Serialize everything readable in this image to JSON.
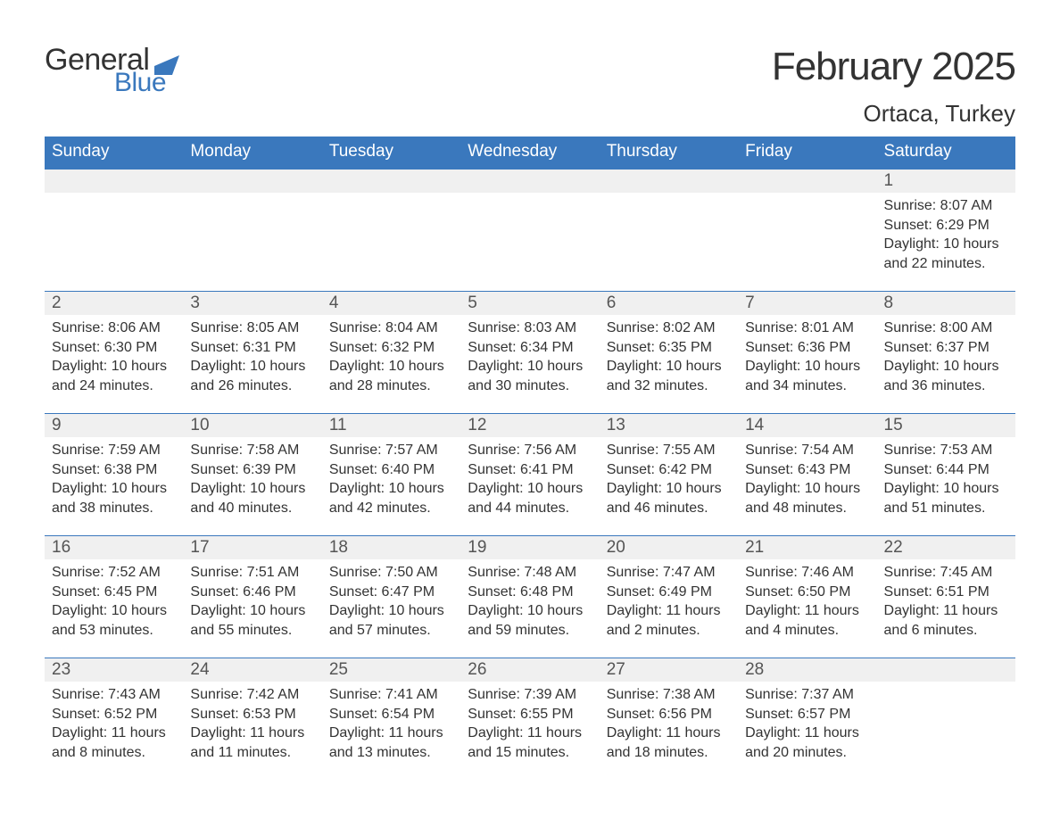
{
  "logo": {
    "text1": "General",
    "text2": "Blue",
    "icon_color": "#3a78bd"
  },
  "title": "February 2025",
  "location": "Ortaca, Turkey",
  "header_bg": "#3a78bd",
  "header_fg": "#ffffff",
  "day_strip_bg": "#f0f0f0",
  "divider_color": "#3a78bd",
  "weekdays": [
    "Sunday",
    "Monday",
    "Tuesday",
    "Wednesday",
    "Thursday",
    "Friday",
    "Saturday"
  ],
  "weeks": [
    [
      {
        "n": "",
        "sunrise": "",
        "sunset": "",
        "daylight": ""
      },
      {
        "n": "",
        "sunrise": "",
        "sunset": "",
        "daylight": ""
      },
      {
        "n": "",
        "sunrise": "",
        "sunset": "",
        "daylight": ""
      },
      {
        "n": "",
        "sunrise": "",
        "sunset": "",
        "daylight": ""
      },
      {
        "n": "",
        "sunrise": "",
        "sunset": "",
        "daylight": ""
      },
      {
        "n": "",
        "sunrise": "",
        "sunset": "",
        "daylight": ""
      },
      {
        "n": "1",
        "sunrise": "Sunrise: 8:07 AM",
        "sunset": "Sunset: 6:29 PM",
        "daylight": "Daylight: 10 hours and 22 minutes."
      }
    ],
    [
      {
        "n": "2",
        "sunrise": "Sunrise: 8:06 AM",
        "sunset": "Sunset: 6:30 PM",
        "daylight": "Daylight: 10 hours and 24 minutes."
      },
      {
        "n": "3",
        "sunrise": "Sunrise: 8:05 AM",
        "sunset": "Sunset: 6:31 PM",
        "daylight": "Daylight: 10 hours and 26 minutes."
      },
      {
        "n": "4",
        "sunrise": "Sunrise: 8:04 AM",
        "sunset": "Sunset: 6:32 PM",
        "daylight": "Daylight: 10 hours and 28 minutes."
      },
      {
        "n": "5",
        "sunrise": "Sunrise: 8:03 AM",
        "sunset": "Sunset: 6:34 PM",
        "daylight": "Daylight: 10 hours and 30 minutes."
      },
      {
        "n": "6",
        "sunrise": "Sunrise: 8:02 AM",
        "sunset": "Sunset: 6:35 PM",
        "daylight": "Daylight: 10 hours and 32 minutes."
      },
      {
        "n": "7",
        "sunrise": "Sunrise: 8:01 AM",
        "sunset": "Sunset: 6:36 PM",
        "daylight": "Daylight: 10 hours and 34 minutes."
      },
      {
        "n": "8",
        "sunrise": "Sunrise: 8:00 AM",
        "sunset": "Sunset: 6:37 PM",
        "daylight": "Daylight: 10 hours and 36 minutes."
      }
    ],
    [
      {
        "n": "9",
        "sunrise": "Sunrise: 7:59 AM",
        "sunset": "Sunset: 6:38 PM",
        "daylight": "Daylight: 10 hours and 38 minutes."
      },
      {
        "n": "10",
        "sunrise": "Sunrise: 7:58 AM",
        "sunset": "Sunset: 6:39 PM",
        "daylight": "Daylight: 10 hours and 40 minutes."
      },
      {
        "n": "11",
        "sunrise": "Sunrise: 7:57 AM",
        "sunset": "Sunset: 6:40 PM",
        "daylight": "Daylight: 10 hours and 42 minutes."
      },
      {
        "n": "12",
        "sunrise": "Sunrise: 7:56 AM",
        "sunset": "Sunset: 6:41 PM",
        "daylight": "Daylight: 10 hours and 44 minutes."
      },
      {
        "n": "13",
        "sunrise": "Sunrise: 7:55 AM",
        "sunset": "Sunset: 6:42 PM",
        "daylight": "Daylight: 10 hours and 46 minutes."
      },
      {
        "n": "14",
        "sunrise": "Sunrise: 7:54 AM",
        "sunset": "Sunset: 6:43 PM",
        "daylight": "Daylight: 10 hours and 48 minutes."
      },
      {
        "n": "15",
        "sunrise": "Sunrise: 7:53 AM",
        "sunset": "Sunset: 6:44 PM",
        "daylight": "Daylight: 10 hours and 51 minutes."
      }
    ],
    [
      {
        "n": "16",
        "sunrise": "Sunrise: 7:52 AM",
        "sunset": "Sunset: 6:45 PM",
        "daylight": "Daylight: 10 hours and 53 minutes."
      },
      {
        "n": "17",
        "sunrise": "Sunrise: 7:51 AM",
        "sunset": "Sunset: 6:46 PM",
        "daylight": "Daylight: 10 hours and 55 minutes."
      },
      {
        "n": "18",
        "sunrise": "Sunrise: 7:50 AM",
        "sunset": "Sunset: 6:47 PM",
        "daylight": "Daylight: 10 hours and 57 minutes."
      },
      {
        "n": "19",
        "sunrise": "Sunrise: 7:48 AM",
        "sunset": "Sunset: 6:48 PM",
        "daylight": "Daylight: 10 hours and 59 minutes."
      },
      {
        "n": "20",
        "sunrise": "Sunrise: 7:47 AM",
        "sunset": "Sunset: 6:49 PM",
        "daylight": "Daylight: 11 hours and 2 minutes."
      },
      {
        "n": "21",
        "sunrise": "Sunrise: 7:46 AM",
        "sunset": "Sunset: 6:50 PM",
        "daylight": "Daylight: 11 hours and 4 minutes."
      },
      {
        "n": "22",
        "sunrise": "Sunrise: 7:45 AM",
        "sunset": "Sunset: 6:51 PM",
        "daylight": "Daylight: 11 hours and 6 minutes."
      }
    ],
    [
      {
        "n": "23",
        "sunrise": "Sunrise: 7:43 AM",
        "sunset": "Sunset: 6:52 PM",
        "daylight": "Daylight: 11 hours and 8 minutes."
      },
      {
        "n": "24",
        "sunrise": "Sunrise: 7:42 AM",
        "sunset": "Sunset: 6:53 PM",
        "daylight": "Daylight: 11 hours and 11 minutes."
      },
      {
        "n": "25",
        "sunrise": "Sunrise: 7:41 AM",
        "sunset": "Sunset: 6:54 PM",
        "daylight": "Daylight: 11 hours and 13 minutes."
      },
      {
        "n": "26",
        "sunrise": "Sunrise: 7:39 AM",
        "sunset": "Sunset: 6:55 PM",
        "daylight": "Daylight: 11 hours and 15 minutes."
      },
      {
        "n": "27",
        "sunrise": "Sunrise: 7:38 AM",
        "sunset": "Sunset: 6:56 PM",
        "daylight": "Daylight: 11 hours and 18 minutes."
      },
      {
        "n": "28",
        "sunrise": "Sunrise: 7:37 AM",
        "sunset": "Sunset: 6:57 PM",
        "daylight": "Daylight: 11 hours and 20 minutes."
      },
      {
        "n": "",
        "sunrise": "",
        "sunset": "",
        "daylight": ""
      }
    ]
  ]
}
